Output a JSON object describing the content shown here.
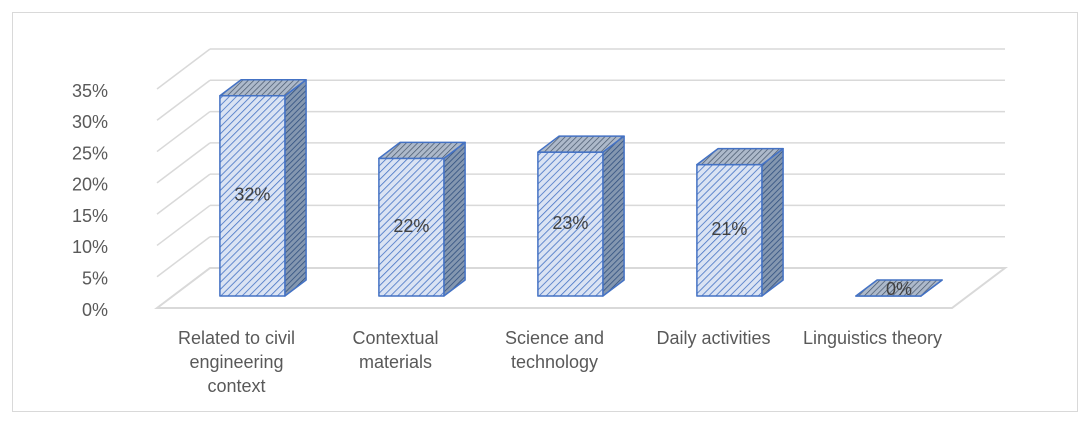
{
  "chart_data": {
    "type": "bar3d",
    "categories": [
      "Related to civil engineering context",
      "Contextual materials",
      "Science and technology",
      "Daily activities",
      "Linguistics theory"
    ],
    "values": [
      32,
      22,
      23,
      21,
      0
    ],
    "value_labels": [
      "32%",
      "22%",
      "23%",
      "21%",
      "0%"
    ],
    "color": "#4472c4",
    "ylim": [
      0,
      35
    ],
    "yticks": [
      {
        "value": 0,
        "label": "0%"
      },
      {
        "value": 5,
        "label": "5%"
      },
      {
        "value": 10,
        "label": "10%"
      },
      {
        "value": 15,
        "label": "15%"
      },
      {
        "value": 20,
        "label": "20%"
      },
      {
        "value": 25,
        "label": "25%"
      },
      {
        "value": 30,
        "label": "30%"
      },
      {
        "value": 35,
        "label": "35%"
      }
    ],
    "grid": true
  }
}
